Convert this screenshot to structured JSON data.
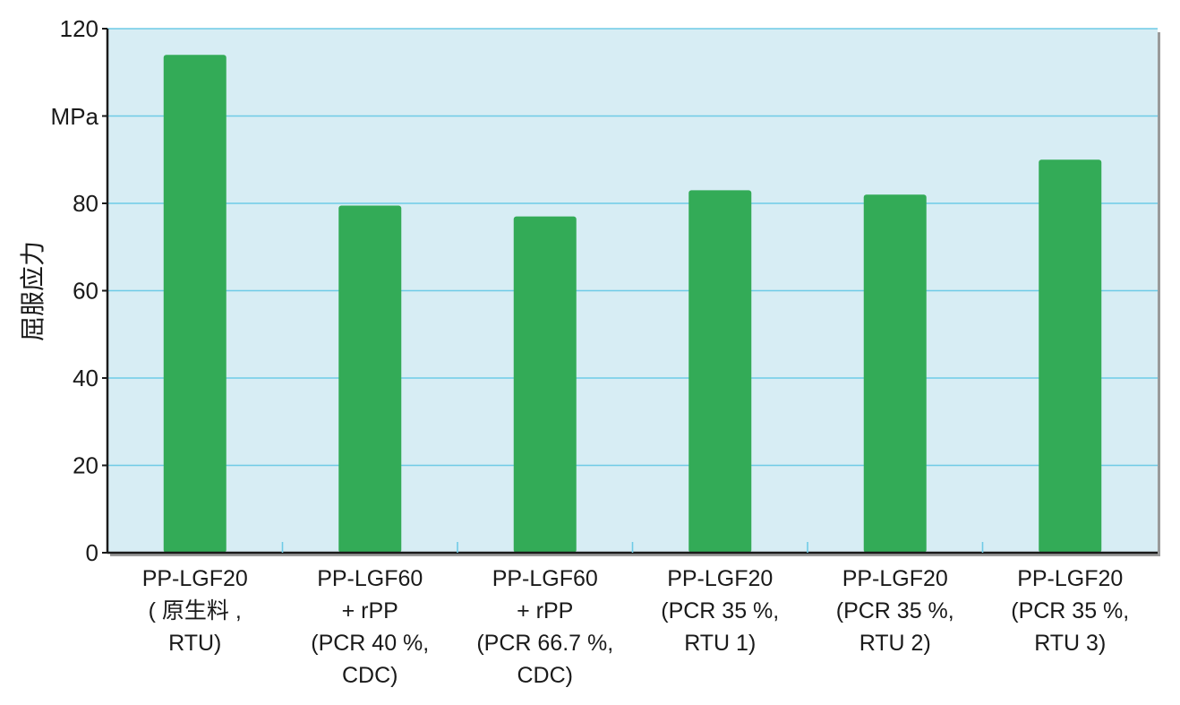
{
  "chart_data": {
    "type": "bar",
    "categories": [
      [
        "PP-LGF20",
        "( 原生料 ,",
        "RTU)"
      ],
      [
        "PP-LGF60",
        "+ rPP",
        "(PCR 40 %,",
        "CDC)"
      ],
      [
        "PP-LGF60",
        "+ rPP",
        "(PCR 66.7 %,",
        "CDC)"
      ],
      [
        "PP-LGF20",
        "(PCR 35 %,",
        "RTU 1)"
      ],
      [
        "PP-LGF20",
        "(PCR 35 %,",
        "RTU 2)"
      ],
      [
        "PP-LGF20",
        "(PCR 35 %,",
        "RTU 3)"
      ]
    ],
    "values": [
      114,
      79.5,
      77,
      83,
      82,
      90
    ],
    "ylabel": "屈服应力",
    "unit": "MPa",
    "ylim": [
      0,
      120
    ],
    "yticks": [
      "0",
      "20",
      "40",
      "60",
      "80",
      "",
      "120"
    ],
    "grid": true,
    "colors": {
      "bar": "#33ab57",
      "plot_background": "#d7edf4",
      "grid": "#6fcbe6",
      "axis": "#1a1a1a"
    }
  }
}
